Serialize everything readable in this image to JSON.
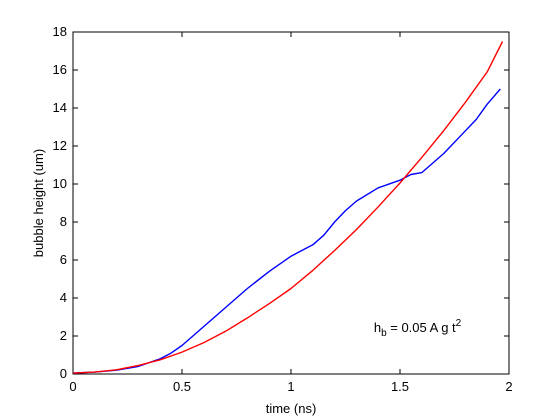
{
  "chart_data": {
    "type": "line",
    "xlabel": "time (ns)",
    "ylabel": "bubble height (um)",
    "xlim": [
      0,
      2
    ],
    "ylim": [
      0,
      18
    ],
    "xticks": [
      0,
      0.5,
      1,
      1.5,
      2
    ],
    "xtick_labels": [
      "0",
      "0.5",
      "1",
      "1.5",
      "2"
    ],
    "yticks": [
      0,
      2,
      4,
      6,
      8,
      10,
      12,
      14,
      16,
      18
    ],
    "ytick_labels": [
      "0",
      "2",
      "4",
      "6",
      "8",
      "10",
      "12",
      "14",
      "16",
      "18"
    ],
    "grid": false,
    "annotation": {
      "base": "h",
      "subscript": "b",
      "middle": " = 0.05 A g t",
      "superscript": "2",
      "x": 1.38,
      "y": 2.2
    },
    "series": [
      {
        "color": "#0000ff",
        "x": [
          0,
          0.1,
          0.2,
          0.3,
          0.4,
          0.45,
          0.5,
          0.6,
          0.7,
          0.8,
          0.9,
          1.0,
          1.1,
          1.15,
          1.2,
          1.25,
          1.3,
          1.4,
          1.5,
          1.55,
          1.6,
          1.7,
          1.8,
          1.85,
          1.9,
          1.96
        ],
        "y": [
          0.05,
          0.1,
          0.2,
          0.4,
          0.8,
          1.1,
          1.5,
          2.5,
          3.5,
          4.5,
          5.4,
          6.2,
          6.8,
          7.3,
          8.0,
          8.6,
          9.1,
          9.8,
          10.2,
          10.5,
          10.6,
          11.6,
          12.8,
          13.4,
          14.2,
          15.0
        ]
      },
      {
        "color": "#ff0000",
        "x": [
          0,
          0.1,
          0.2,
          0.3,
          0.4,
          0.5,
          0.6,
          0.7,
          0.8,
          0.9,
          1.0,
          1.1,
          1.2,
          1.3,
          1.4,
          1.5,
          1.6,
          1.7,
          1.8,
          1.9,
          1.97
        ],
        "y": [
          0.05,
          0.1,
          0.22,
          0.45,
          0.75,
          1.15,
          1.65,
          2.25,
          2.95,
          3.7,
          4.5,
          5.45,
          6.5,
          7.6,
          8.8,
          10.05,
          11.4,
          12.8,
          14.3,
          15.9,
          17.5
        ]
      }
    ]
  }
}
